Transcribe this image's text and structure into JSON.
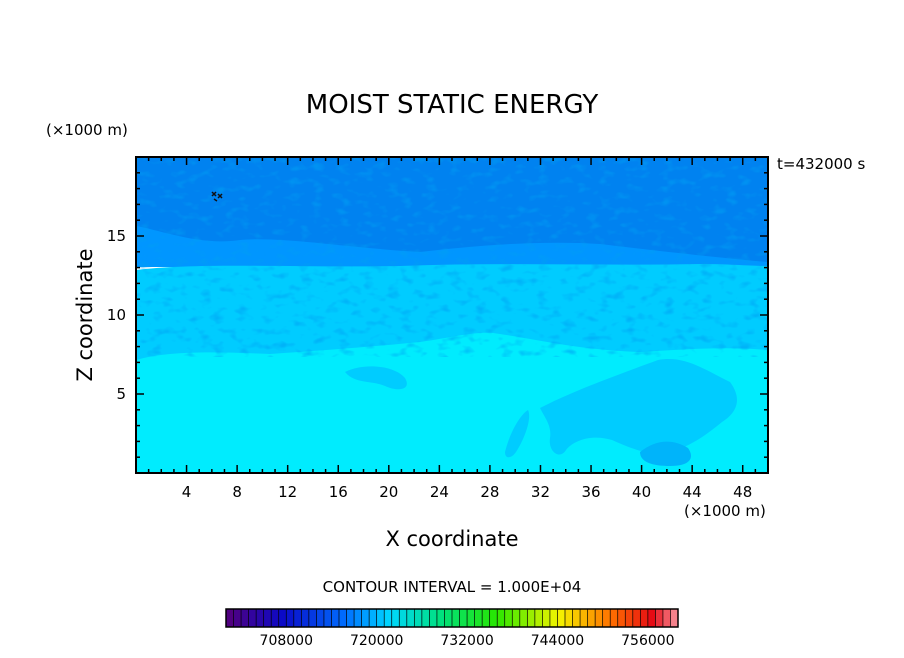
{
  "chart_data": {
    "type": "heatmap",
    "title": "MOIST STATIC ENERGY",
    "xlabel": "X coordinate",
    "ylabel": "Z coordinate",
    "x_unit": "(×1000 m)",
    "y_unit": "(×1000 m)",
    "time_label": "t=432000 s",
    "xlim": [
      0,
      50
    ],
    "ylim": [
      0,
      20
    ],
    "x_ticks": [
      4,
      8,
      12,
      16,
      20,
      24,
      28,
      32,
      36,
      40,
      44,
      48
    ],
    "y_ticks": [
      5,
      10,
      15
    ],
    "contour_interval_label": "CONTOUR INTERVAL = 1.000E+04",
    "colorbar": {
      "min": 700000,
      "max": 760000,
      "tick_values": [
        708000,
        720000,
        732000,
        744000,
        756000
      ],
      "tick_labels": [
        "708000",
        "720000",
        "732000",
        "744000",
        "756000"
      ]
    },
    "field_levels": [
      {
        "z_range": [
          0,
          7.5
        ],
        "value": 722000,
        "color": "#00ecfe"
      },
      {
        "z_range": [
          7.5,
          13
        ],
        "value": 719000,
        "color": "#00ccff"
      },
      {
        "z_range": [
          13,
          20
        ],
        "value": 716000,
        "color": "#0096ff"
      },
      {
        "z_range": [
          14.5,
          19
        ],
        "value": 714000,
        "color": "#0082f0"
      }
    ],
    "grid": false
  }
}
